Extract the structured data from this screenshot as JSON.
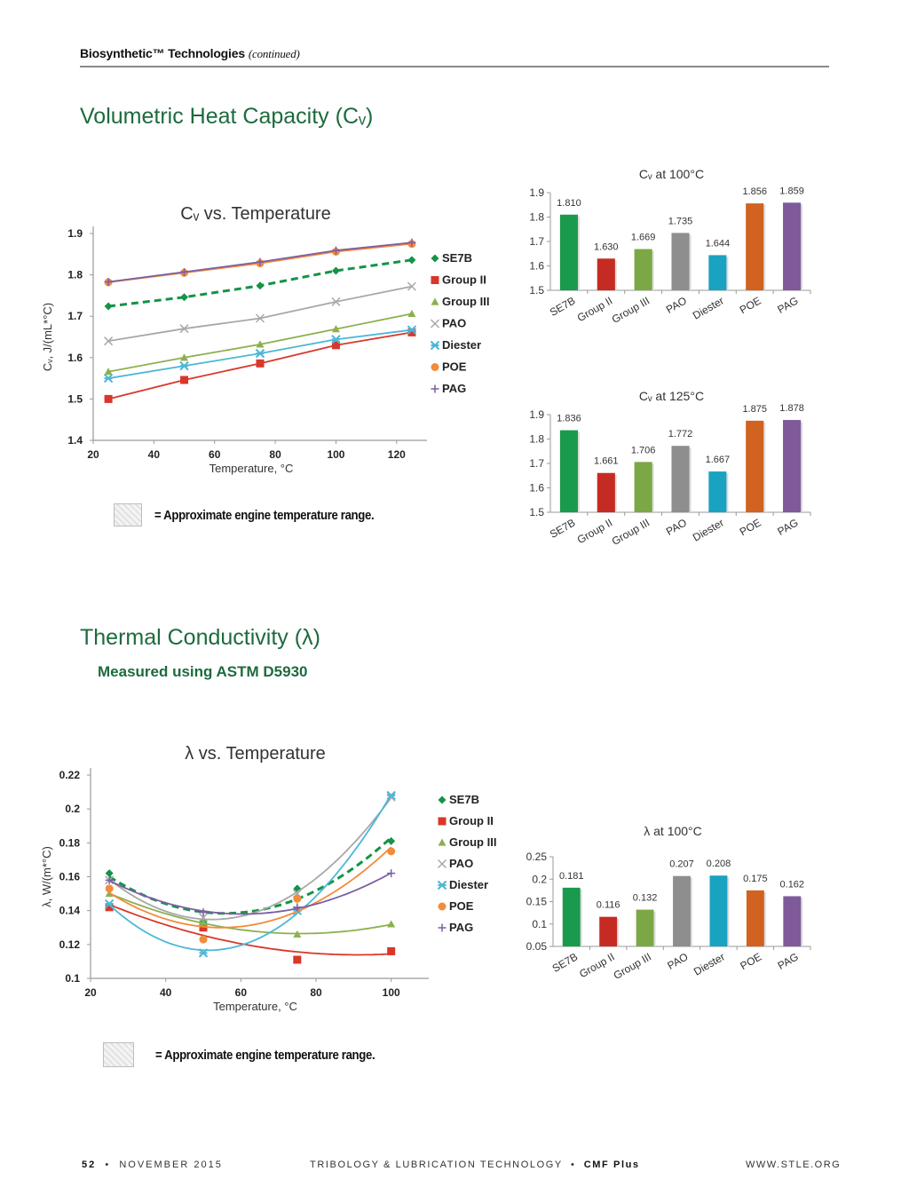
{
  "header": {
    "running_title": "Biosynthetic™ Technologies",
    "continued": "(continued)"
  },
  "sections": {
    "cv_title": "Volumetric Heat Capacity (Cᵥ)",
    "lambda_title": "Thermal Conductivity (λ)",
    "lambda_subtitle": "Measured using ASTM D5930"
  },
  "notes": {
    "engine_range": "= Approximate engine temperature range."
  },
  "footer": {
    "page": "52",
    "date": "NOVEMBER 2015",
    "publication": "TRIBOLOGY & LUBRICATION TECHNOLOGY",
    "section": "CMF Plus",
    "website": "WWW.STLE.ORG"
  },
  "colors": {
    "SE7B": "#139447",
    "Group II": "#d9372a",
    "Group III": "#8cb050",
    "PAO": "#a8a8a8",
    "Diester": "#4cb7d6",
    "POE": "#f28b3a",
    "PAG": "#7b5ea3"
  },
  "bar_colors": [
    "#1a9a4d",
    "#c52b22",
    "#7ba845",
    "#8e8e8e",
    "#1aa3c1",
    "#d1621f",
    "#7e5a9b"
  ],
  "chart_data": [
    {
      "id": "cv_line",
      "type": "line",
      "title": "Cᵥ vs. Temperature",
      "xlabel": "Temperature, °C",
      "ylabel": "Cᵥ, J/(mL*°C)",
      "xlim": [
        20,
        130
      ],
      "ylim": [
        1.4,
        1.9
      ],
      "xticks": [
        20,
        40,
        60,
        80,
        100,
        120
      ],
      "yticks": [
        1.4,
        1.5,
        1.6,
        1.7,
        1.8,
        1.9
      ],
      "legend": "right",
      "grid": false,
      "x": [
        25,
        50,
        75,
        100,
        125
      ],
      "series": [
        {
          "name": "SE7B",
          "marker": "diamond",
          "dashed": true,
          "values": [
            1.724,
            1.746,
            1.774,
            1.81,
            1.836
          ]
        },
        {
          "name": "Group II",
          "marker": "square",
          "values": [
            1.5,
            1.546,
            1.586,
            1.63,
            1.661
          ]
        },
        {
          "name": "Group III",
          "marker": "triangle",
          "values": [
            1.566,
            1.6,
            1.632,
            1.669,
            1.706
          ]
        },
        {
          "name": "PAO",
          "marker": "x",
          "values": [
            1.64,
            1.67,
            1.695,
            1.735,
            1.772
          ]
        },
        {
          "name": "Diester",
          "marker": "asterisk",
          "values": [
            1.55,
            1.58,
            1.61,
            1.644,
            1.667
          ]
        },
        {
          "name": "POE",
          "marker": "circle",
          "values": [
            1.782,
            1.805,
            1.828,
            1.856,
            1.875
          ]
        },
        {
          "name": "PAG",
          "marker": "plus",
          "values": [
            1.783,
            1.807,
            1.831,
            1.859,
            1.878
          ]
        }
      ]
    },
    {
      "id": "cv_100",
      "type": "bar",
      "title": "Cᵥ at 100°C",
      "categories": [
        "SE7B",
        "Group II",
        "Group III",
        "PAO",
        "Diester",
        "POE",
        "PAG"
      ],
      "values": [
        1.81,
        1.63,
        1.669,
        1.735,
        1.644,
        1.856,
        1.859
      ],
      "labels": [
        "1.810",
        "1.630",
        "1.669",
        "1.735",
        "1.644",
        "1.856",
        "1.859"
      ],
      "ylim": [
        1.5,
        1.9
      ],
      "yticks": [
        "1.5",
        "1.6",
        "1.7",
        "1.8",
        "1.9"
      ]
    },
    {
      "id": "cv_125",
      "type": "bar",
      "title": "Cᵥ at 125°C",
      "categories": [
        "SE7B",
        "Group II",
        "Group III",
        "PAO",
        "Diester",
        "POE",
        "PAG"
      ],
      "values": [
        1.836,
        1.661,
        1.706,
        1.772,
        1.667,
        1.875,
        1.878
      ],
      "labels": [
        "1.836",
        "1.661",
        "1.706",
        "1.772",
        "1.667",
        "1.875",
        "1.878"
      ],
      "ylim": [
        1.5,
        1.9
      ],
      "yticks": [
        "1.5",
        "1.6",
        "1.7",
        "1.8",
        "1.9"
      ]
    },
    {
      "id": "lambda_line",
      "type": "line",
      "title": "λ vs. Temperature",
      "xlabel": "Temperature, °C",
      "ylabel": "λ, W/(m*°C)",
      "xlim": [
        20,
        110
      ],
      "ylim": [
        0.1,
        0.22
      ],
      "xticks": [
        20,
        40,
        60,
        80,
        100
      ],
      "yticks": [
        0.1,
        0.12,
        0.14,
        0.16,
        0.18,
        0.2,
        0.22
      ],
      "ytick_labels": [
        "0.1",
        "0.12",
        "0.14",
        "0.16",
        "0.18",
        "0.2",
        "0.22"
      ],
      "legend": "right",
      "grid": false,
      "trendline": "polynomial",
      "x": [
        25,
        50,
        75,
        100
      ],
      "series": [
        {
          "name": "SE7B",
          "marker": "diamond",
          "dashed": true,
          "values": [
            0.162,
            0.133,
            0.153,
            0.181
          ]
        },
        {
          "name": "Group II",
          "marker": "square",
          "values": [
            0.142,
            0.13,
            0.111,
            0.116
          ]
        },
        {
          "name": "Group III",
          "marker": "triangle",
          "values": [
            0.15,
            0.133,
            0.126,
            0.132
          ]
        },
        {
          "name": "PAO",
          "marker": "x",
          "values": [
            0.158,
            0.136,
            0.15,
            0.207
          ]
        },
        {
          "name": "Diester",
          "marker": "asterisk",
          "values": [
            0.144,
            0.115,
            0.14,
            0.208
          ]
        },
        {
          "name": "POE",
          "marker": "circle",
          "values": [
            0.153,
            0.123,
            0.147,
            0.175
          ]
        },
        {
          "name": "PAG",
          "marker": "plus",
          "values": [
            0.158,
            0.139,
            0.142,
            0.162
          ]
        }
      ]
    },
    {
      "id": "lambda_100",
      "type": "bar",
      "title": "λ at 100°C",
      "categories": [
        "SE7B",
        "Group II",
        "Group III",
        "PAO",
        "Diester",
        "POE",
        "PAG"
      ],
      "values": [
        0.181,
        0.116,
        0.132,
        0.207,
        0.208,
        0.175,
        0.162
      ],
      "labels": [
        "0.181",
        "0.116",
        "0.132",
        "0.207",
        "0.208",
        "0.175",
        "0.162"
      ],
      "ylim": [
        0.05,
        0.25
      ],
      "yticks": [
        "0.05",
        "0.1",
        "0.15",
        "0.2",
        "0.25"
      ]
    }
  ]
}
